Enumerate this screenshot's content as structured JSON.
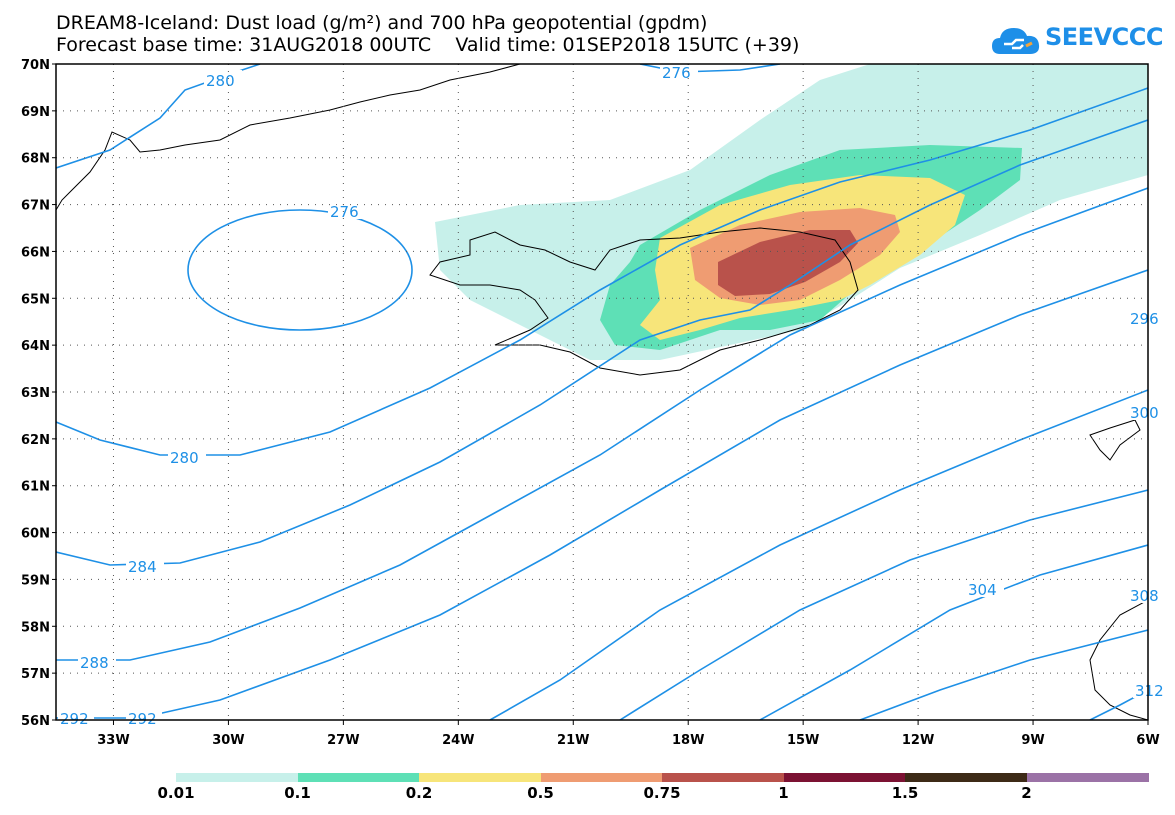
{
  "title": {
    "line1": "DREAM8-Iceland: Dust load (g/m²) and 700 hPa geopotential (gpdm)",
    "line2": "Forecast base time: 31AUG2018 00UTC    Valid time: 01SEP2018 15UTC (+39)"
  },
  "logo": {
    "text": "SEEVCCC",
    "icon": "cloud-icon",
    "color": "#1e8fe8"
  },
  "map": {
    "lat_range": [
      56,
      70
    ],
    "lon_range": [
      -34.5,
      -6
    ],
    "lat_labels": [
      "70N",
      "69N",
      "68N",
      "67N",
      "66N",
      "65N",
      "64N",
      "63N",
      "62N",
      "61N",
      "60N",
      "59N",
      "58N",
      "57N",
      "56N"
    ],
    "lon_labels": [
      "33W",
      "30W",
      "27W",
      "24W",
      "21W",
      "18W",
      "15W",
      "12W",
      "9W",
      "6W"
    ],
    "contour_color": "#1e90e6",
    "contour_labels": [
      "280",
      "276",
      "276",
      "280",
      "284",
      "288",
      "292",
      "292",
      "296",
      "300",
      "304",
      "308",
      "312"
    ],
    "grid": "dotted"
  },
  "legend": {
    "colors": [
      "#c7f0ea",
      "#5ee0b6",
      "#f7e57a",
      "#ef9c72",
      "#b9524b",
      "#7c1233",
      "#3d2a17",
      "#9b72a6"
    ],
    "labels": [
      "0.01",
      "0.1",
      "0.2",
      "0.5",
      "0.75",
      "1",
      "1.5",
      "2"
    ]
  }
}
